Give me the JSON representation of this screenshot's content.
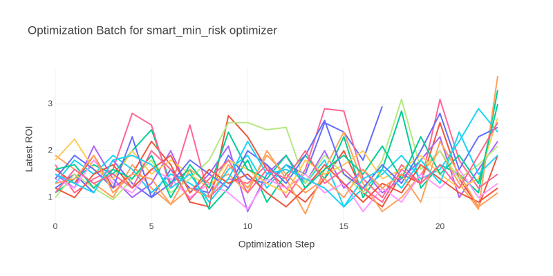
{
  "chart_data": {
    "type": "line",
    "title": "Optimization Batch for smart_min_risk optimizer",
    "x_label": "Optimization Step",
    "y_label": "Latest ROI",
    "x": [
      0,
      1,
      2,
      3,
      4,
      5,
      6,
      7,
      8,
      9,
      10,
      11,
      12,
      13,
      14,
      15,
      16,
      17,
      18,
      19,
      20,
      21,
      22,
      23
    ],
    "xlim": [
      0,
      23
    ],
    "xticks": [
      0,
      5,
      10,
      15,
      20
    ],
    "ylim": [
      0.5,
      3.75
    ],
    "yticks": [
      1,
      2,
      3
    ],
    "grid": true,
    "series": [
      {
        "color": "#636efa",
        "values": [
          1.2,
          1.5,
          1.1,
          1.8,
          1.3,
          1.0,
          1.6,
          1.2,
          1.1,
          1.9,
          1.4,
          1.3,
          1.7,
          1.5,
          2.6,
          2.4,
          1.8,
          2.95,
          null,
          null,
          null,
          null,
          null,
          null
        ]
      },
      {
        "color": "#EF553B",
        "values": [
          1.6,
          1.3,
          1.9,
          1.2,
          1.5,
          2.2,
          1.7,
          0.9,
          0.8,
          2.75,
          2.3,
          1.6,
          1.2,
          0.9,
          1.4,
          2.0,
          1.1,
          0.8,
          1.5,
          1.3,
          2.6,
          1.4,
          0.8,
          1.9
        ]
      },
      {
        "color": "#00cc96",
        "values": [
          1.1,
          1.4,
          1.7,
          1.5,
          2.0,
          2.45,
          1.3,
          1.6,
          0.75,
          1.2,
          1.8,
          0.9,
          1.5,
          1.9,
          1.4,
          2.3,
          1.0,
          1.6,
          2.85,
          1.2,
          1.7,
          1.5,
          1.1,
          3.3
        ]
      },
      {
        "color": "#ab63fa",
        "values": [
          1.5,
          1.2,
          2.1,
          1.4,
          1.0,
          1.3,
          2.0,
          1.1,
          1.5,
          2.1,
          0.7,
          1.5,
          1.9,
          1.3,
          2.0,
          1.2,
          1.6,
          1.1,
          1.4,
          1.8,
          2.3,
          1.0,
          1.6,
          2.2
        ]
      },
      {
        "color": "#FFA15A",
        "values": [
          1.9,
          1.6,
          1.3,
          1.0,
          1.7,
          1.2,
          0.85,
          1.6,
          1.3,
          1.5,
          1.1,
          2.0,
          1.4,
          0.65,
          1.6,
          2.4,
          1.3,
          0.7,
          1.0,
          1.5,
          2.0,
          1.3,
          0.75,
          3.6
        ]
      },
      {
        "color": "#19d3f3",
        "values": [
          1.3,
          1.8,
          1.5,
          1.9,
          1.6,
          1.1,
          1.5,
          1.3,
          1.0,
          1.6,
          1.9,
          1.2,
          1.7,
          1.3,
          1.8,
          0.8,
          1.2,
          1.5,
          1.9,
          1.4,
          1.6,
          2.2,
          2.9,
          2.4
        ]
      },
      {
        "color": "#FF6692",
        "values": [
          1.7,
          1.1,
          1.4,
          1.6,
          2.8,
          2.55,
          1.2,
          2.55,
          1.0,
          1.4,
          1.3,
          1.7,
          1.0,
          1.6,
          2.9,
          2.85,
          1.4,
          1.0,
          1.7,
          1.3,
          3.1,
          1.8,
          1.2,
          1.5
        ]
      },
      {
        "color": "#B6E880",
        "values": [
          1.0,
          1.5,
          1.2,
          0.95,
          1.4,
          1.8,
          1.1,
          1.4,
          1.8,
          2.6,
          2.6,
          2.45,
          2.5,
          1.3,
          1.9,
          1.5,
          1.1,
          1.8,
          3.1,
          1.6,
          2.0,
          1.4,
          1.7,
          2.1
        ]
      },
      {
        "color": "#FF97FF",
        "values": [
          1.4,
          1.2,
          1.8,
          1.3,
          1.1,
          1.6,
          1.4,
          1.0,
          1.3,
          1.1,
          0.75,
          1.4,
          1.2,
          1.5,
          1.1,
          1.3,
          0.7,
          1.2,
          0.9,
          1.5,
          1.2,
          1.6,
          1.0,
          1.3
        ]
      },
      {
        "color": "#FECB52",
        "values": [
          1.8,
          2.25,
          1.6,
          1.4,
          2.0,
          1.5,
          1.8,
          1.5,
          1.2,
          1.8,
          1.6,
          1.3,
          1.1,
          1.8,
          1.5,
          1.7,
          2.0,
          1.4,
          1.6,
          1.9,
          1.5,
          1.2,
          1.4,
          2.7
        ]
      },
      {
        "color": "#636efa",
        "values": [
          1.4,
          1.9,
          1.6,
          1.2,
          2.3,
          1.0,
          1.3,
          1.8,
          1.5,
          1.2,
          2.0,
          1.7,
          1.3,
          1.9,
          2.65,
          1.5,
          1.2,
          1.7,
          1.3,
          2.0,
          2.8,
          1.6,
          2.3,
          2.5
        ]
      },
      {
        "color": "#EF553B",
        "values": [
          1.2,
          1.0,
          1.5,
          1.7,
          1.2,
          1.6,
          1.9,
          1.1,
          1.6,
          1.3,
          1.5,
          1.1,
          0.8,
          1.2,
          1.7,
          1.3,
          0.9,
          1.3,
          1.1,
          1.7,
          1.4,
          1.1,
          0.9,
          1.2
        ]
      },
      {
        "color": "#00cc96",
        "values": [
          1.6,
          1.7,
          1.2,
          1.6,
          1.4,
          1.9,
          1.0,
          1.7,
          1.2,
          2.4,
          1.6,
          1.4,
          1.9,
          1.2,
          1.6,
          1.9,
          1.5,
          2.1,
          1.4,
          2.3,
          1.5,
          1.9,
          1.3,
          3.0
        ]
      },
      {
        "color": "#FFA15A",
        "values": [
          1.3,
          1.4,
          1.9,
          1.1,
          1.5,
          1.4,
          0.85,
          1.2,
          1.0,
          1.7,
          1.2,
          1.9,
          1.5,
          1.1,
          1.4,
          1.0,
          1.6,
          1.2,
          1.5,
          0.9,
          2.2,
          1.5,
          0.8,
          1.1
        ]
      },
      {
        "color": "#19d3f3",
        "values": [
          1.5,
          1.3,
          1.1,
          1.8,
          1.9,
          1.7,
          1.2,
          1.5,
          0.9,
          1.4,
          2.2,
          1.5,
          1.6,
          1.4,
          1.2,
          0.8,
          1.4,
          1.6,
          1.2,
          1.8,
          1.3,
          2.4,
          1.5,
          1.9
        ]
      },
      {
        "color": "#FF6692",
        "values": [
          1.1,
          1.6,
          1.3,
          1.5,
          1.2,
          2.0,
          1.6,
          0.95,
          1.4,
          1.8,
          1.1,
          1.6,
          1.4,
          2.0,
          1.3,
          1.6,
          1.2,
          0.9,
          1.6,
          1.3,
          1.7,
          1.2,
          1.9,
          2.6
        ]
      }
    ]
  }
}
